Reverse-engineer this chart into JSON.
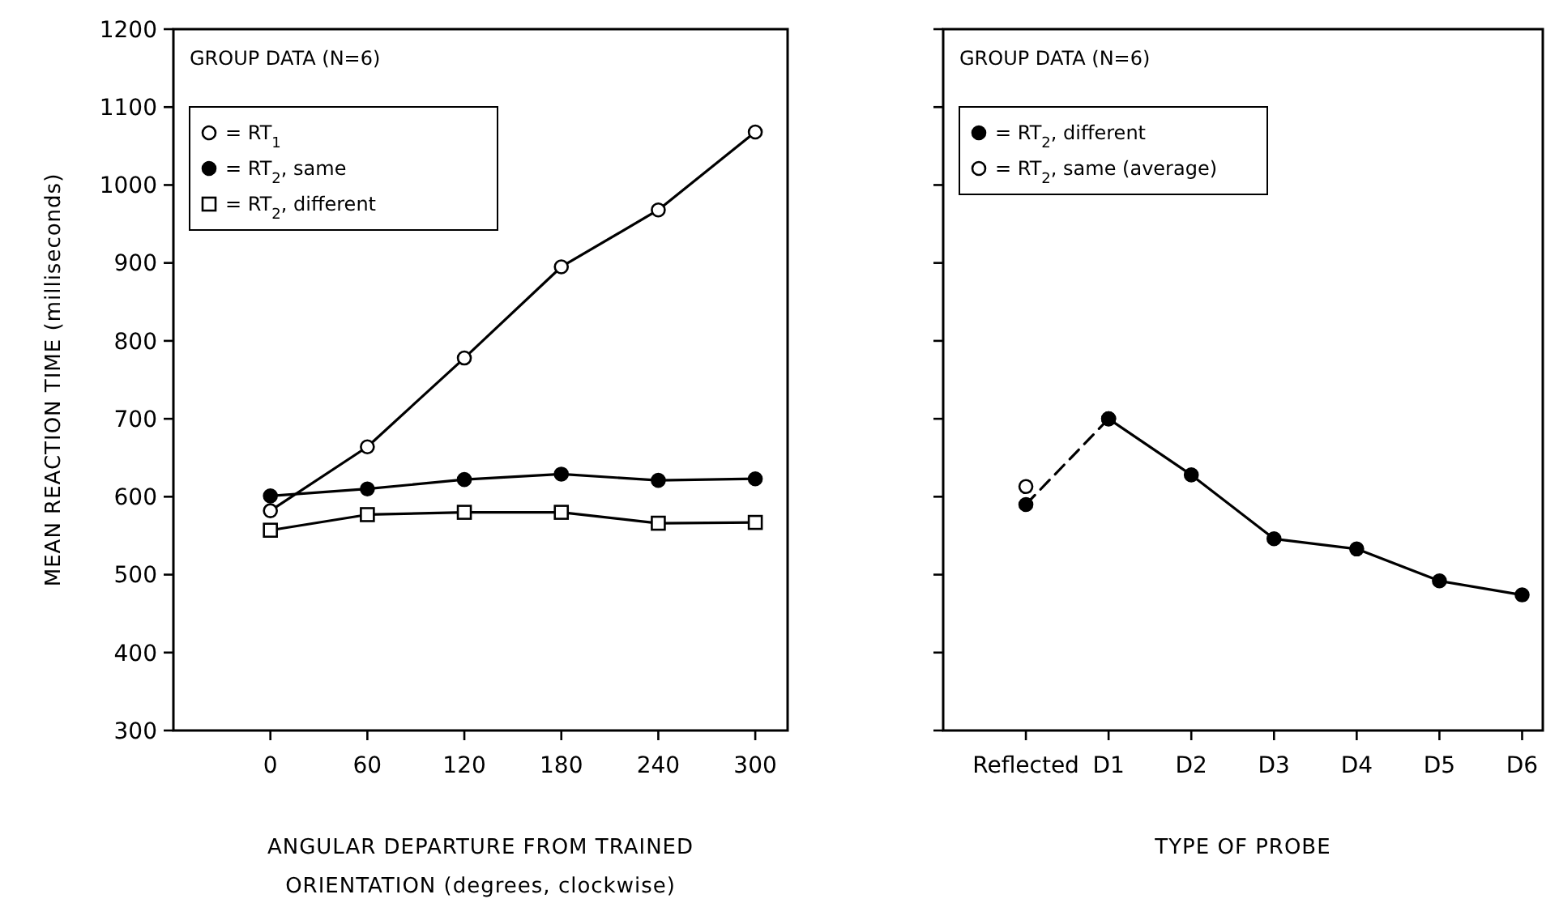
{
  "chart_data": [
    {
      "type": "line",
      "xlabel": "ANGULAR DEPARTURE FROM TRAINED ORIENTATION (degrees, clockwise)",
      "ylabel": "MEAN REACTION TIME (milliseconds)",
      "legend_title": "GROUP DATA (N=6)",
      "legend": "top left",
      "line_style": "solid",
      "x": [
        0,
        60,
        120,
        180,
        240,
        300
      ],
      "xlim": [
        -60,
        320
      ],
      "xticks": [
        0,
        60,
        120,
        180,
        240,
        300
      ],
      "ylim": [
        300,
        1200
      ],
      "yticks": [
        300,
        400,
        500,
        600,
        700,
        800,
        900,
        1000,
        1100,
        1200
      ],
      "series": [
        {
          "name": "= RT$_{1}$",
          "color": "#ffffff",
          "marker": "circle",
          "values": [
            582,
            664,
            778,
            895,
            968,
            1068
          ]
        },
        {
          "name": "= RT$_{2}$, same",
          "color": "#000000",
          "marker": "circle",
          "values": [
            601,
            610,
            622,
            629,
            621,
            623
          ]
        },
        {
          "name": "= RT$_{2}$, different",
          "color": "#ffffff",
          "marker": "square",
          "values": [
            557,
            577,
            580,
            580,
            566,
            567
          ]
        }
      ]
    },
    {
      "type": "line",
      "xlabel": "TYPE OF PROBE",
      "legend_title": "GROUP DATA (N=6)",
      "legend": "top left",
      "tick_labels": "x",
      "categories": [
        "Reflected",
        "D1",
        "D2",
        "D3",
        "D4",
        "D5",
        "D6"
      ],
      "ylim": [
        300,
        1200
      ],
      "yticks": [
        300,
        400,
        500,
        600,
        700,
        800,
        900,
        1000,
        1100,
        1200
      ],
      "series": [
        {
          "name": "= RT$_{2}$, different",
          "color": "#000000",
          "marker": "circle",
          "line_style": "solid",
          "values": [
            null,
            700,
            628,
            546,
            533,
            492,
            474
          ]
        },
        {
          "color": "#000000",
          "marker": "circle",
          "line_style": "dashed",
          "values": [
            590,
            700,
            null,
            null,
            null,
            null,
            null
          ]
        },
        {
          "name": "= RT$_{2}$, same (average)",
          "color": "#ffffff",
          "marker": "circle",
          "values": [
            613,
            null,
            null,
            null,
            null,
            null,
            null
          ]
        }
      ]
    }
  ]
}
